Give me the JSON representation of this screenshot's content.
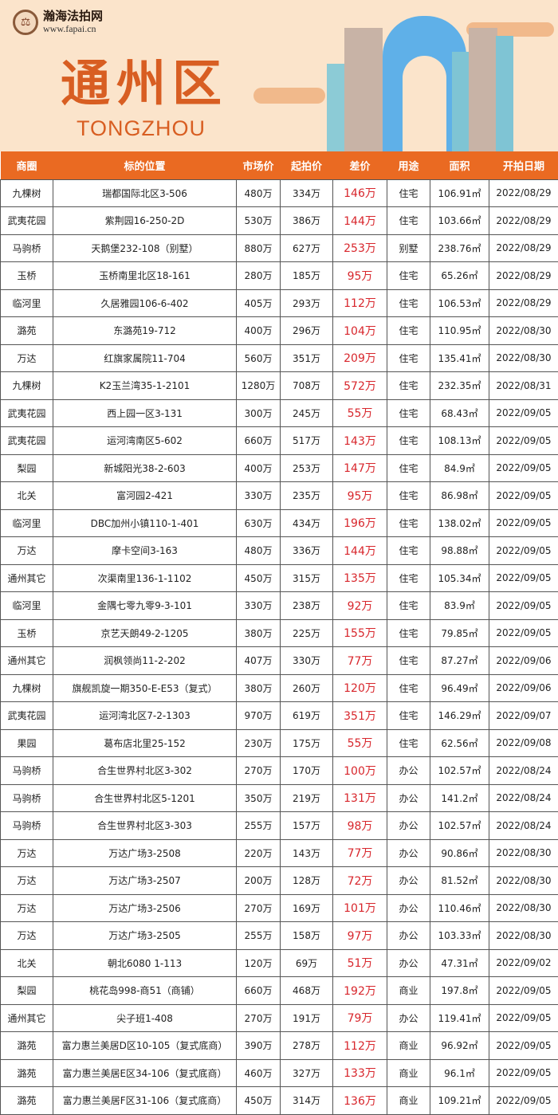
{
  "banner": {
    "logo_name": "瀚海法拍网",
    "logo_url": "www.fapai.cn",
    "title": "通州区",
    "subtitle": "TONGZHOU"
  },
  "colors": {
    "header": "#ea6a22",
    "title": "#d85e22",
    "diff": "#d8262c",
    "banner_bg": "#fbe4cb"
  },
  "table": {
    "headers": [
      "商圈",
      "标的位置",
      "市场价",
      "起拍价",
      "差价",
      "用途",
      "面积",
      "开拍日期"
    ],
    "rows": [
      [
        "九棵树",
        "瑞都国际北区3-506",
        "480万",
        "334万",
        "146万",
        "住宅",
        "106.91㎡",
        "2022/08/29"
      ],
      [
        "武夷花园",
        "紫荆园16-250-2D",
        "530万",
        "386万",
        "144万",
        "住宅",
        "103.66㎡",
        "2022/08/29"
      ],
      [
        "马驹桥",
        "天鹅堡232-108（别墅）",
        "880万",
        "627万",
        "253万",
        "别墅",
        "238.76㎡",
        "2022/08/29"
      ],
      [
        "玉桥",
        "玉桥南里北区18-161",
        "280万",
        "185万",
        "95万",
        "住宅",
        "65.26㎡",
        "2022/08/29"
      ],
      [
        "临河里",
        "久居雅园106-6-402",
        "405万",
        "293万",
        "112万",
        "住宅",
        "106.53㎡",
        "2022/08/29"
      ],
      [
        "潞苑",
        "东潞苑19-712",
        "400万",
        "296万",
        "104万",
        "住宅",
        "110.95㎡",
        "2022/08/30"
      ],
      [
        "万达",
        "红旗家属院11-704",
        "560万",
        "351万",
        "209万",
        "住宅",
        "135.41㎡",
        "2022/08/30"
      ],
      [
        "九棵树",
        "K2玉兰湾35-1-2101",
        "1280万",
        "708万",
        "572万",
        "住宅",
        "232.35㎡",
        "2022/08/31"
      ],
      [
        "武夷花园",
        "西上园一区3-131",
        "300万",
        "245万",
        "55万",
        "住宅",
        "68.43㎡",
        "2022/09/05"
      ],
      [
        "武夷花园",
        "运河湾南区5-602",
        "660万",
        "517万",
        "143万",
        "住宅",
        "108.13㎡",
        "2022/09/05"
      ],
      [
        "梨园",
        "新城阳光38-2-603",
        "400万",
        "253万",
        "147万",
        "住宅",
        "84.9㎡",
        "2022/09/05"
      ],
      [
        "北关",
        "富河园2-421",
        "330万",
        "235万",
        "95万",
        "住宅",
        "86.98㎡",
        "2022/09/05"
      ],
      [
        "临河里",
        "DBC加州小镇110-1-401",
        "630万",
        "434万",
        "196万",
        "住宅",
        "138.02㎡",
        "2022/09/05"
      ],
      [
        "万达",
        "摩卡空间3-163",
        "480万",
        "336万",
        "144万",
        "住宅",
        "98.88㎡",
        "2022/09/05"
      ],
      [
        "通州其它",
        "次渠南里136-1-1102",
        "450万",
        "315万",
        "135万",
        "住宅",
        "105.34㎡",
        "2022/09/05"
      ],
      [
        "临河里",
        "金隅七零九零9-3-101",
        "330万",
        "238万",
        "92万",
        "住宅",
        "83.9㎡",
        "2022/09/05"
      ],
      [
        "玉桥",
        "京艺天朗49-2-1205",
        "380万",
        "225万",
        "155万",
        "住宅",
        "79.85㎡",
        "2022/09/05"
      ],
      [
        "通州其它",
        "润枫领尚11-2-202",
        "407万",
        "330万",
        "77万",
        "住宅",
        "87.27㎡",
        "2022/09/06"
      ],
      [
        "九棵树",
        "旗舰凯旋一期350-E-E53（复式）",
        "380万",
        "260万",
        "120万",
        "住宅",
        "96.49㎡",
        "2022/09/06"
      ],
      [
        "武夷花园",
        "运河湾北区7-2-1303",
        "970万",
        "619万",
        "351万",
        "住宅",
        "146.29㎡",
        "2022/09/07"
      ],
      [
        "果园",
        "葛布店北里25-152",
        "230万",
        "175万",
        "55万",
        "住宅",
        "62.56㎡",
        "2022/09/08"
      ],
      [
        "马驹桥",
        "合生世界村北区3-302",
        "270万",
        "170万",
        "100万",
        "办公",
        "102.57㎡",
        "2022/08/24"
      ],
      [
        "马驹桥",
        "合生世界村北区5-1201",
        "350万",
        "219万",
        "131万",
        "办公",
        "141.2㎡",
        "2022/08/24"
      ],
      [
        "马驹桥",
        "合生世界村北区3-303",
        "255万",
        "157万",
        "98万",
        "办公",
        "102.57㎡",
        "2022/08/24"
      ],
      [
        "万达",
        "万达广场3-2508",
        "220万",
        "143万",
        "77万",
        "办公",
        "90.86㎡",
        "2022/08/30"
      ],
      [
        "万达",
        "万达广场3-2507",
        "200万",
        "128万",
        "72万",
        "办公",
        "81.52㎡",
        "2022/08/30"
      ],
      [
        "万达",
        "万达广场3-2506",
        "270万",
        "169万",
        "101万",
        "办公",
        "110.46㎡",
        "2022/08/30"
      ],
      [
        "万达",
        "万达广场3-2505",
        "255万",
        "158万",
        "97万",
        "办公",
        "103.33㎡",
        "2022/08/30"
      ],
      [
        "北关",
        "朝北6080 1-113",
        "120万",
        "69万",
        "51万",
        "办公",
        "47.31㎡",
        "2022/09/02"
      ],
      [
        "梨园",
        "桃花岛998-商51（商铺）",
        "660万",
        "468万",
        "192万",
        "商业",
        "197.8㎡",
        "2022/09/05"
      ],
      [
        "通州其它",
        "尖子班1-408",
        "270万",
        "191万",
        "79万",
        "办公",
        "119.41㎡",
        "2022/09/05"
      ],
      [
        "潞苑",
        "富力惠兰美居D区10-105（复式底商）",
        "390万",
        "278万",
        "112万",
        "商业",
        "96.92㎡",
        "2022/09/05"
      ],
      [
        "潞苑",
        "富力惠兰美居E区34-106（复式底商）",
        "460万",
        "327万",
        "133万",
        "商业",
        "96.1㎡",
        "2022/09/05"
      ],
      [
        "潞苑",
        "富力惠兰美居F区31-106（复式底商）",
        "450万",
        "314万",
        "136万",
        "商业",
        "109.21㎡",
        "2022/09/05"
      ]
    ]
  }
}
